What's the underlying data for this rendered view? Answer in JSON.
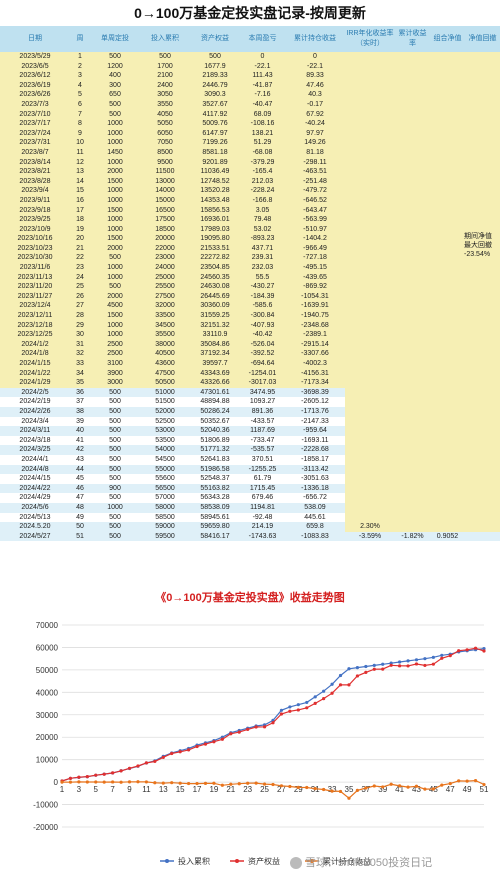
{
  "title": "0→100万基金定投实盘记录-按周更新",
  "table": {
    "headers": [
      "日期",
      "周",
      "单周定投",
      "投入累积",
      "资产权益",
      "本周盈亏",
      "累计持仓收益",
      "IRR年化收益率（实时）",
      "累计收益率",
      "组合净值",
      "净值回撤"
    ],
    "rows": [
      [
        "2023/5/29",
        "1",
        "500",
        "500",
        "500",
        "0",
        "0"
      ],
      [
        "2023/6/5",
        "2",
        "1200",
        "1700",
        "1677.9",
        "-22.1",
        "-22.1"
      ],
      [
        "2023/6/12",
        "3",
        "400",
        "2100",
        "2189.33",
        "111.43",
        "89.33"
      ],
      [
        "2023/6/19",
        "4",
        "300",
        "2400",
        "2446.79",
        "-41.87",
        "47.46"
      ],
      [
        "2023/6/26",
        "5",
        "650",
        "3050",
        "3090.3",
        "-7.16",
        "40.3"
      ],
      [
        "2023/7/3",
        "6",
        "500",
        "3550",
        "3527.67",
        "-40.47",
        "-0.17"
      ],
      [
        "2023/7/10",
        "7",
        "500",
        "4050",
        "4117.92",
        "68.09",
        "67.92"
      ],
      [
        "2023/7/17",
        "8",
        "1000",
        "5050",
        "5009.76",
        "-108.16",
        "-40.24"
      ],
      [
        "2023/7/24",
        "9",
        "1000",
        "6050",
        "6147.97",
        "138.21",
        "97.97"
      ],
      [
        "2023/7/31",
        "10",
        "1000",
        "7050",
        "7199.26",
        "51.29",
        "149.26"
      ],
      [
        "2023/8/7",
        "11",
        "1450",
        "8500",
        "8581.18",
        "-68.08",
        "81.18"
      ],
      [
        "2023/8/14",
        "12",
        "1000",
        "9500",
        "9201.89",
        "-379.29",
        "-298.11"
      ],
      [
        "2023/8/21",
        "13",
        "2000",
        "11500",
        "11036.49",
        "-165.4",
        "-463.51"
      ],
      [
        "2023/8/28",
        "14",
        "1500",
        "13000",
        "12748.52",
        "212.03",
        "-251.48"
      ],
      [
        "2023/9/4",
        "15",
        "1000",
        "14000",
        "13520.28",
        "-228.24",
        "-479.72"
      ],
      [
        "2023/9/11",
        "16",
        "1000",
        "15000",
        "14353.48",
        "-166.8",
        "-646.52"
      ],
      [
        "2023/9/18",
        "17",
        "1500",
        "16500",
        "15856.53",
        "3.05",
        "-643.47"
      ],
      [
        "2023/9/25",
        "18",
        "1000",
        "17500",
        "16936.01",
        "79.48",
        "-563.99"
      ],
      [
        "2023/10/9",
        "19",
        "1000",
        "18500",
        "17989.03",
        "53.02",
        "-510.97"
      ],
      [
        "2023/10/16",
        "20",
        "1500",
        "20000",
        "19095.80",
        "-893.23",
        "-1404.2"
      ],
      [
        "2023/10/23",
        "21",
        "2000",
        "22000",
        "21533.51",
        "437.71",
        "-966.49"
      ],
      [
        "2023/10/30",
        "22",
        "500",
        "23000",
        "22272.82",
        "239.31",
        "-727.18"
      ],
      [
        "2023/11/6",
        "23",
        "1000",
        "24000",
        "23504.85",
        "232.03",
        "-495.15"
      ],
      [
        "2023/11/13",
        "24",
        "1000",
        "25000",
        "24560.35",
        "55.5",
        "-439.65"
      ],
      [
        "2023/11/20",
        "25",
        "500",
        "25500",
        "24630.08",
        "-430.27",
        "-869.92"
      ],
      [
        "2023/11/27",
        "26",
        "2000",
        "27500",
        "26445.69",
        "-184.39",
        "-1054.31"
      ],
      [
        "2023/12/4",
        "27",
        "4500",
        "32000",
        "30360.09",
        "-585.6",
        "-1639.91"
      ],
      [
        "2023/12/11",
        "28",
        "1500",
        "33500",
        "31559.25",
        "-300.84",
        "-1940.75"
      ],
      [
        "2023/12/18",
        "29",
        "1000",
        "34500",
        "32151.32",
        "-407.93",
        "-2348.68"
      ],
      [
        "2023/12/25",
        "30",
        "1000",
        "35500",
        "33110.9",
        "-40.42",
        "-2389.1"
      ],
      [
        "2024/1/2",
        "31",
        "2500",
        "38000",
        "35084.86",
        "-526.04",
        "-2915.14"
      ],
      [
        "2024/1/8",
        "32",
        "2500",
        "40500",
        "37192.34",
        "-392.52",
        "-3307.66"
      ],
      [
        "2024/1/15",
        "33",
        "3100",
        "43600",
        "39597.7",
        "-694.64",
        "-4002.3"
      ],
      [
        "2024/1/22",
        "34",
        "3900",
        "47500",
        "43343.69",
        "-1254.01",
        "-4156.31"
      ],
      [
        "2024/1/29",
        "35",
        "3000",
        "50500",
        "43326.66",
        "-3017.03",
        "-7173.34"
      ],
      [
        "2024/2/5",
        "36",
        "500",
        "51000",
        "47301.61",
        "3474.95",
        "-3698.39"
      ],
      [
        "2024/2/19",
        "37",
        "500",
        "51500",
        "48894.88",
        "1093.27",
        "-2605.12"
      ],
      [
        "2024/2/26",
        "38",
        "500",
        "52000",
        "50286.24",
        "891.36",
        "-1713.76"
      ],
      [
        "2024/3/4",
        "39",
        "500",
        "52500",
        "50352.67",
        "-433.57",
        "-2147.33"
      ],
      [
        "2024/3/11",
        "40",
        "500",
        "53000",
        "52040.36",
        "1187.69",
        "-959.64"
      ],
      [
        "2024/3/18",
        "41",
        "500",
        "53500",
        "51806.89",
        "-733.47",
        "-1693.11"
      ],
      [
        "2024/3/25",
        "42",
        "500",
        "54000",
        "51771.32",
        "-535.57",
        "-2228.68"
      ],
      [
        "2024/4/1",
        "43",
        "500",
        "54500",
        "52641.83",
        "370.51",
        "-1858.17"
      ],
      [
        "2024/4/8",
        "44",
        "500",
        "55000",
        "51986.58",
        "-1255.25",
        "-3113.42"
      ],
      [
        "2024/4/15",
        "45",
        "500",
        "55600",
        "52548.37",
        "61.79",
        "-3051.63"
      ],
      [
        "2024/4/22",
        "46",
        "900",
        "56500",
        "55163.82",
        "1715.45",
        "-1336.18"
      ],
      [
        "2024/4/29",
        "47",
        "500",
        "57000",
        "56343.28",
        "679.46",
        "-656.72"
      ],
      [
        "2024/5/6",
        "48",
        "1000",
        "58000",
        "58538.09",
        "1194.81",
        "538.09"
      ],
      [
        "2024/5/13",
        "49",
        "500",
        "58500",
        "58945.61",
        "-92.48",
        "445.61"
      ],
      [
        "2024.5.20",
        "50",
        "500",
        "59000",
        "59659.80",
        "214.19",
        "659.8"
      ],
      [
        "2024/5/27",
        "51",
        "500",
        "59500",
        "58416.17",
        "-1743.63",
        "-1083.83"
      ]
    ],
    "row50_extra": [
      "2.30%"
    ],
    "row51_extra": [
      "-3.59%",
      "-1.82%",
      "0.9052"
    ],
    "side_note": [
      "期间净值",
      "最大回撤",
      "-23.54%"
    ]
  },
  "chart_data": {
    "type": "line",
    "title": "《0→100万基金定投实盘》收益走势图",
    "x": [
      1,
      2,
      3,
      4,
      5,
      6,
      7,
      8,
      9,
      10,
      11,
      12,
      13,
      14,
      15,
      16,
      17,
      18,
      19,
      20,
      21,
      22,
      23,
      24,
      25,
      26,
      27,
      28,
      29,
      30,
      31,
      32,
      33,
      34,
      35,
      36,
      37,
      38,
      39,
      40,
      41,
      42,
      43,
      44,
      45,
      46,
      47,
      48,
      49,
      50,
      51
    ],
    "xticks": [
      1,
      3,
      5,
      7,
      9,
      11,
      13,
      15,
      17,
      19,
      21,
      23,
      25,
      27,
      29,
      31,
      33,
      35,
      37,
      39,
      41,
      43,
      45,
      47,
      49,
      51
    ],
    "ylim": [
      -20000,
      70000
    ],
    "yticks": [
      -20000,
      -10000,
      0,
      10000,
      20000,
      30000,
      40000,
      50000,
      60000,
      70000
    ],
    "grid": true,
    "legend_position": "bottom",
    "series": [
      {
        "name": "投入累积",
        "color": "#4472c4",
        "values": [
          500,
          1700,
          2100,
          2400,
          3050,
          3550,
          4050,
          5050,
          6050,
          7050,
          8500,
          9500,
          11500,
          13000,
          14000,
          15000,
          16500,
          17500,
          18500,
          20000,
          22000,
          23000,
          24000,
          25000,
          25500,
          27500,
          32000,
          33500,
          34500,
          35500,
          38000,
          40500,
          43600,
          47500,
          50500,
          51000,
          51500,
          52000,
          52500,
          53000,
          53500,
          54000,
          54500,
          55000,
          55600,
          56500,
          57000,
          58000,
          58500,
          59000,
          59500
        ]
      },
      {
        "name": "资产权益",
        "color": "#e03030",
        "values": [
          500,
          1677.9,
          2189.33,
          2446.79,
          3090.3,
          3527.67,
          4117.92,
          5009.76,
          6147.97,
          7199.26,
          8581.18,
          9201.89,
          11036.49,
          12748.52,
          13520.28,
          14353.48,
          15856.53,
          16936.01,
          17989.03,
          19095.8,
          21533.51,
          22272.82,
          23504.85,
          24560.35,
          24630.08,
          26445.69,
          30360.09,
          31559.25,
          32151.32,
          33110.9,
          35084.86,
          37192.34,
          39597.7,
          43343.69,
          43326.66,
          47301.61,
          48894.88,
          50286.24,
          50352.67,
          52040.36,
          51806.89,
          51771.32,
          52641.83,
          51986.58,
          52548.37,
          55163.82,
          56343.28,
          58538.09,
          58945.61,
          59659.8,
          58416.17
        ]
      },
      {
        "name": "累计持仓收益",
        "color": "#e8741c",
        "values": [
          0,
          -22.1,
          89.33,
          47.46,
          40.3,
          -0.17,
          67.92,
          -40.24,
          97.97,
          149.26,
          81.18,
          -298.11,
          -463.51,
          -251.48,
          -479.72,
          -646.52,
          -643.47,
          -563.99,
          -510.97,
          -1404.2,
          -966.49,
          -727.18,
          -495.15,
          -439.65,
          -869.92,
          -1054.31,
          -1639.91,
          -1940.75,
          -2348.68,
          -2389.1,
          -2915.14,
          -3307.66,
          -4002.3,
          -4156.31,
          -7173.34,
          -3698.39,
          -2605.12,
          -1713.76,
          -2147.33,
          -959.64,
          -1693.11,
          -2228.68,
          -1858.17,
          -3113.42,
          -3051.63,
          -1336.18,
          -656.72,
          538.09,
          445.61,
          659.8,
          -1083.83
        ]
      }
    ]
  },
  "watermark": "雪球：smile2050投资日记"
}
